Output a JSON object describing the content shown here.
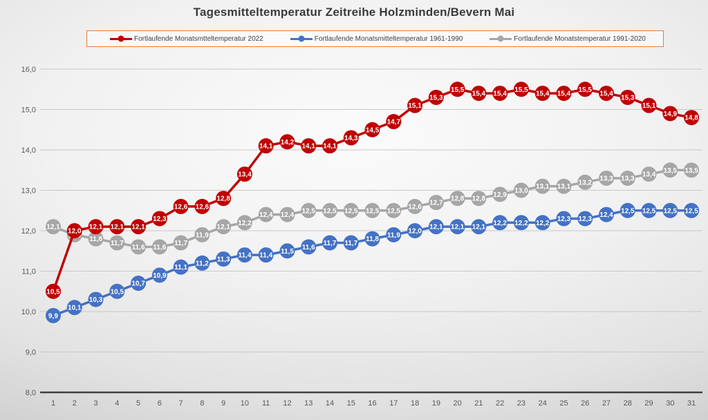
{
  "chart_data": {
    "type": "line",
    "title": "Tagesmitteltemperatur Zeitreihe Holzminden/Bevern Mai",
    "xlabel": "",
    "ylabel": "",
    "categories": [
      1,
      2,
      3,
      4,
      5,
      6,
      7,
      8,
      9,
      10,
      11,
      12,
      13,
      14,
      15,
      16,
      17,
      18,
      19,
      20,
      21,
      22,
      23,
      24,
      25,
      26,
      27,
      28,
      29,
      30,
      31
    ],
    "series": [
      {
        "name": "Fortlaufende Monatsmtteltemperatur 2022",
        "color": "#c00000",
        "values": [
          10.5,
          12.0,
          12.1,
          12.1,
          12.1,
          12.3,
          12.6,
          12.6,
          12.8,
          13.4,
          14.1,
          14.2,
          14.1,
          14.1,
          14.3,
          14.5,
          14.7,
          15.1,
          15.3,
          15.5,
          15.4,
          15.4,
          15.5,
          15.4,
          15.4,
          15.5,
          15.4,
          15.3,
          15.1,
          14.9,
          14.8
        ]
      },
      {
        "name": "Fortlaufende Monatsmitteltemperatur 1961-1990",
        "color": "#4472c4",
        "values": [
          9.9,
          10.1,
          10.3,
          10.5,
          10.7,
          10.9,
          11.1,
          11.2,
          11.3,
          11.4,
          11.4,
          11.5,
          11.6,
          11.7,
          11.7,
          11.8,
          11.9,
          12.0,
          12.1,
          12.1,
          12.1,
          12.2,
          12.2,
          12.2,
          12.3,
          12.3,
          12.4,
          12.5,
          12.5,
          12.5,
          12.5
        ]
      },
      {
        "name": "Fortlaufende Monatstemperatur 1991-2020",
        "color": "#a6a6a6",
        "values": [
          12.1,
          11.9,
          11.8,
          11.7,
          11.6,
          11.6,
          11.7,
          11.9,
          12.1,
          12.2,
          12.4,
          12.4,
          12.5,
          12.5,
          12.5,
          12.5,
          12.5,
          12.6,
          12.7,
          12.8,
          12.8,
          12.9,
          13.0,
          13.1,
          13.1,
          13.2,
          13.3,
          13.3,
          13.4,
          13.5,
          13.5
        ]
      }
    ],
    "ylim": [
      8,
      16
    ],
    "ytick_step": 1,
    "ytick_labels": [
      "8,0",
      "9,0",
      "10,0",
      "11,0",
      "12,0",
      "13,0",
      "14,0",
      "15,0",
      "16,0"
    ],
    "decimal_separator": ",",
    "grid": true,
    "legend_position": "top",
    "data_labels": "inside-marker",
    "axis_text_color": "#595959",
    "axis_line_color": "#3f3f3f",
    "gridline_color": "#c8c8c8",
    "legend_border_color": "#ed7d31"
  }
}
